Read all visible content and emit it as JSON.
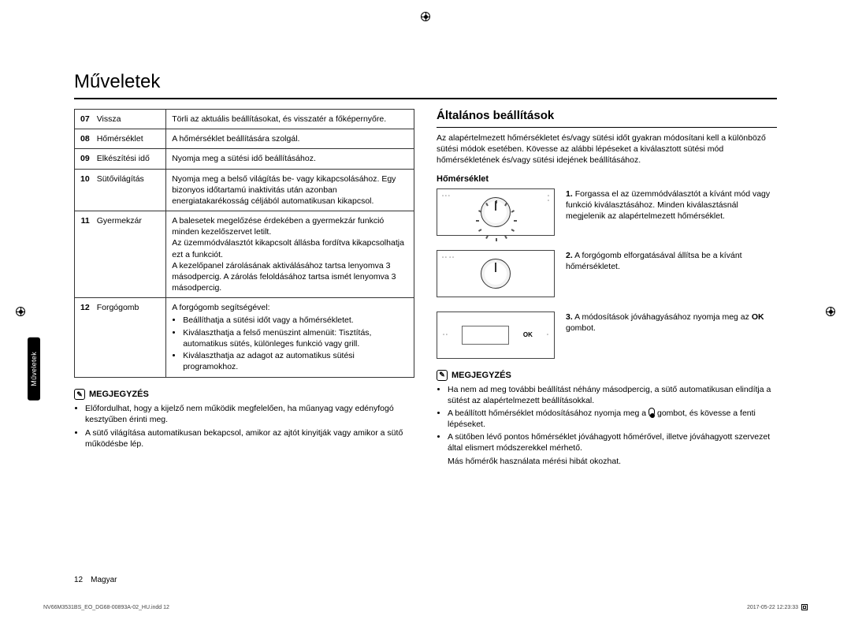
{
  "title": "Műveletek",
  "sidetab": "Műveletek",
  "table_rows": [
    {
      "num": "07",
      "name": "Vissza",
      "desc": "Törli az aktuális beállításokat, és visszatér a főképernyőre."
    },
    {
      "num": "08",
      "name": "Hőmérséklet",
      "desc": "A hőmérséklet beállítására szolgál."
    },
    {
      "num": "09",
      "name": "Elkészítési idő",
      "desc": "Nyomja meg a sütési idő beállításához."
    },
    {
      "num": "10",
      "name": "Sütővilágítás",
      "desc": "Nyomja meg a belső világítás be- vagy kikapcsolásához. Egy bizonyos időtartamú inaktivitás után azonban energiatakarékosság céljából automatikusan kikapcsol."
    },
    {
      "num": "11",
      "name": "Gyermekzár",
      "desc": "A balesetek megelőzése érdekében a gyermekzár funkció minden kezelőszervet letilt.\nAz üzemmódválasztót kikapcsolt állásba fordítva kikapcsolhatja ezt a funkciót.\nA kezelőpanel zárolásának aktiválásához tartsa lenyomva 3 másodpercig. A zárolás feloldásához tartsa ismét lenyomva 3 másodpercig."
    },
    {
      "num": "12",
      "name": "Forgógomb",
      "desc": "A forgógomb segítségével:",
      "bullets": [
        "Beállíthatja a sütési időt vagy a hőmérsékletet.",
        "Kiválaszthatja a felső menüszint almenüit: Tisztítás, automatikus sütés, különleges funkció vagy grill.",
        "Kiválaszthatja az adagot az automatikus sütési programokhoz."
      ]
    }
  ],
  "note_label": "MEGJEGYZÉS",
  "left_notes": [
    "Előfordulhat, hogy a kijelző nem működik megfelelően, ha műanyag vagy edényfogó kesztyűben érinti meg.",
    "A sütő világítása automatikusan bekapcsol, amikor az ajtót kinyitják vagy amikor a sütő működésbe lép."
  ],
  "section": {
    "title": "Általános beállítások",
    "intro": "Az alapértelmezett hőmérsékletet és/vagy sütési időt gyakran módosítani kell a különböző sütési módok esetében. Kövesse az alábbi lépéseket a kiválasztott sütési mód hőmérsékletének és/vagy sütési idejének beállításához.",
    "subhead": "Hőmérséklet",
    "steps": [
      {
        "n": "1.",
        "text": "Forgassa el az üzemmódválasztót a kívánt mód vagy funkció kiválasztásához. Minden kiválasztásnál megjelenik az alapértelmezett hőmérséklet."
      },
      {
        "n": "2.",
        "text": "A forgógomb elforgatásával állítsa be a kívánt hőmérsékletet."
      },
      {
        "n": "3.",
        "text_pre": "A módosítások jóváhagyásához nyomja meg az ",
        "bold": "OK",
        "text_post": " gombot."
      }
    ],
    "ok": "OK",
    "notes": [
      "Ha nem ad meg további beállítást néhány másodpercig, a sütő automatikusan elindítja a sütést az alapértelmezett beállításokkal.",
      {
        "pre": "A beállított hőmérséklet módosításához nyomja meg a ",
        "post": " gombot, és kövesse a fenti lépéseket."
      },
      "A sütőben lévő pontos hőmérséklet jóváhagyott hőmérővel, illetve jóváhagyott szervezet által elismert módszerekkel mérhető."
    ],
    "notes_tail": "Más hőmérők használata mérési hibát okozhat."
  },
  "footer": {
    "page": "12 Magyar",
    "left": "NV66M3531BS_EO_DG68-00893A-02_HU.indd   12",
    "right": "2017-05-22        12:23:33"
  }
}
